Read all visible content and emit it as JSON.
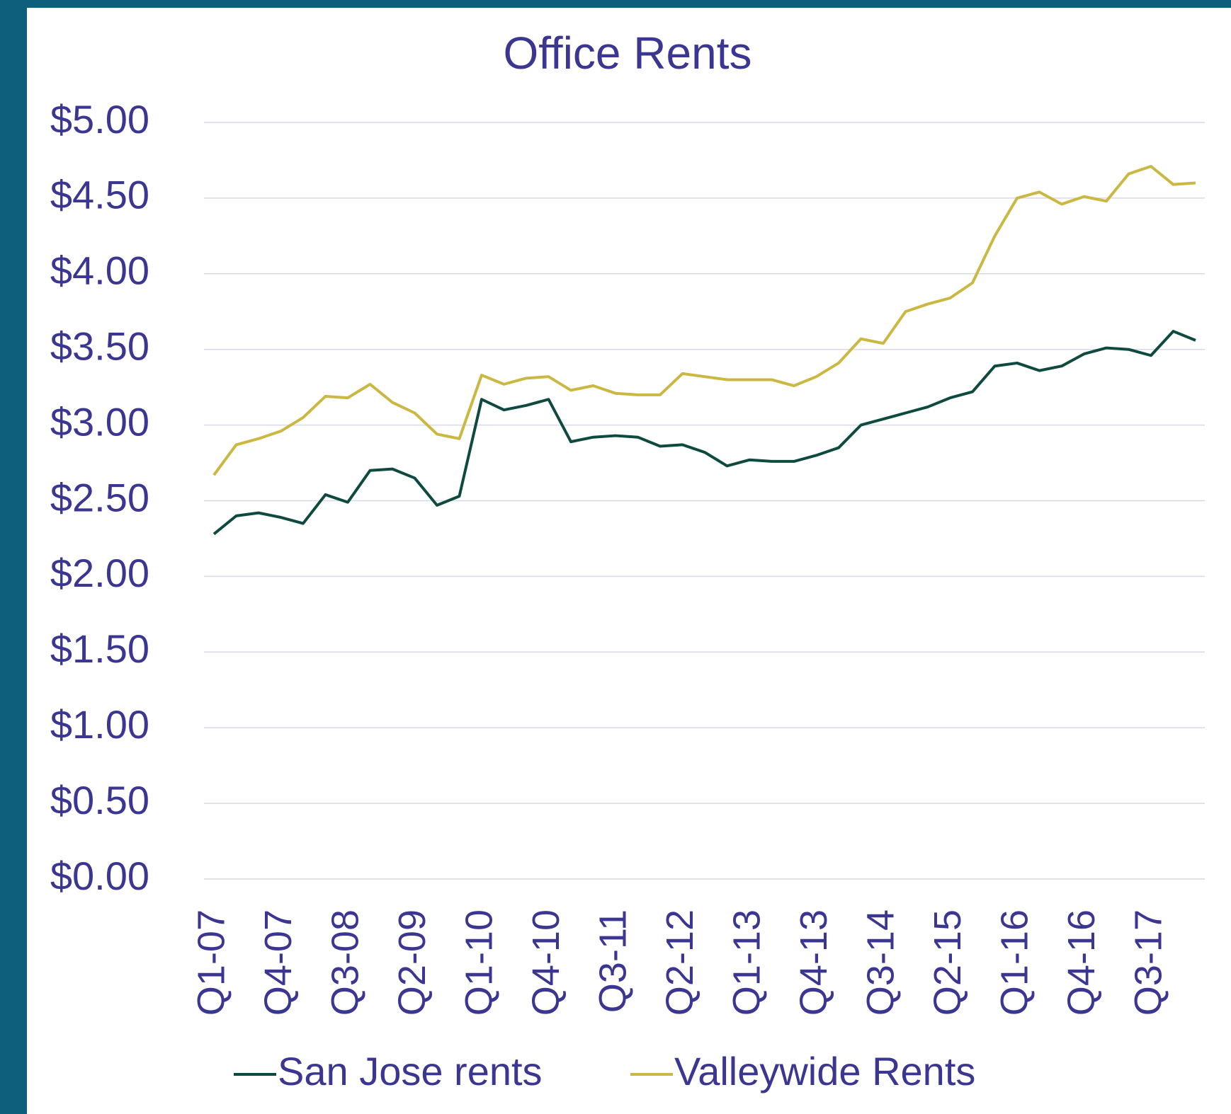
{
  "chart_data": {
    "type": "line",
    "title": "Office Rents",
    "categories": [
      "Q1-07",
      null,
      null,
      "Q4-07",
      null,
      null,
      "Q3-08",
      null,
      null,
      "Q2-09",
      null,
      null,
      "Q1-10",
      null,
      null,
      "Q4-10",
      null,
      null,
      "Q3-11",
      null,
      null,
      "Q2-12",
      null,
      null,
      "Q1-13",
      null,
      null,
      "Q4-13",
      null,
      null,
      "Q3-14",
      null,
      null,
      "Q2-15",
      null,
      null,
      "Q1-16",
      null,
      null,
      "Q4-16",
      null,
      null,
      "Q3-17",
      null,
      null
    ],
    "series": [
      {
        "name": "San Jose rents",
        "color": "#0e4a3f",
        "values": [
          2.28,
          2.4,
          2.42,
          2.39,
          2.35,
          2.54,
          2.49,
          2.7,
          2.71,
          2.65,
          2.47,
          2.53,
          3.17,
          3.1,
          3.13,
          3.17,
          2.89,
          2.92,
          2.93,
          2.92,
          2.86,
          2.87,
          2.82,
          2.73,
          2.77,
          2.76,
          2.76,
          2.8,
          2.85,
          3.0,
          3.04,
          3.08,
          3.12,
          3.18,
          3.22,
          3.39,
          3.41,
          3.36,
          3.39,
          3.47,
          3.51,
          3.5,
          3.46,
          3.62,
          3.56
        ]
      },
      {
        "name": "Valleywide Rents",
        "color": "#cbb842",
        "values": [
          2.67,
          2.87,
          2.91,
          2.96,
          3.05,
          3.19,
          3.18,
          3.27,
          3.15,
          3.08,
          2.94,
          2.91,
          3.33,
          3.27,
          3.31,
          3.32,
          3.23,
          3.26,
          3.21,
          3.2,
          3.2,
          3.34,
          3.32,
          3.3,
          3.3,
          3.3,
          3.26,
          3.32,
          3.41,
          3.57,
          3.54,
          3.75,
          3.8,
          3.84,
          3.94,
          4.25,
          4.5,
          4.54,
          4.46,
          4.51,
          4.48,
          4.66,
          4.71,
          4.59,
          4.6
        ]
      }
    ],
    "ylim": [
      0,
      5
    ],
    "yticks": [
      {
        "value": 0,
        "label": "$0.00"
      },
      {
        "value": 0.5,
        "label": "$0.50"
      },
      {
        "value": 1,
        "label": "$1.00"
      },
      {
        "value": 1.5,
        "label": "$1.50"
      },
      {
        "value": 2,
        "label": "$2.00"
      },
      {
        "value": 2.5,
        "label": "$2.50"
      },
      {
        "value": 3,
        "label": "$3.00"
      },
      {
        "value": 3.5,
        "label": "$3.50"
      },
      {
        "value": 4,
        "label": "$4.00"
      },
      {
        "value": 4.5,
        "label": "$4.50"
      },
      {
        "value": 5,
        "label": "$5.00"
      }
    ],
    "grid": true,
    "legend": "bottom"
  }
}
